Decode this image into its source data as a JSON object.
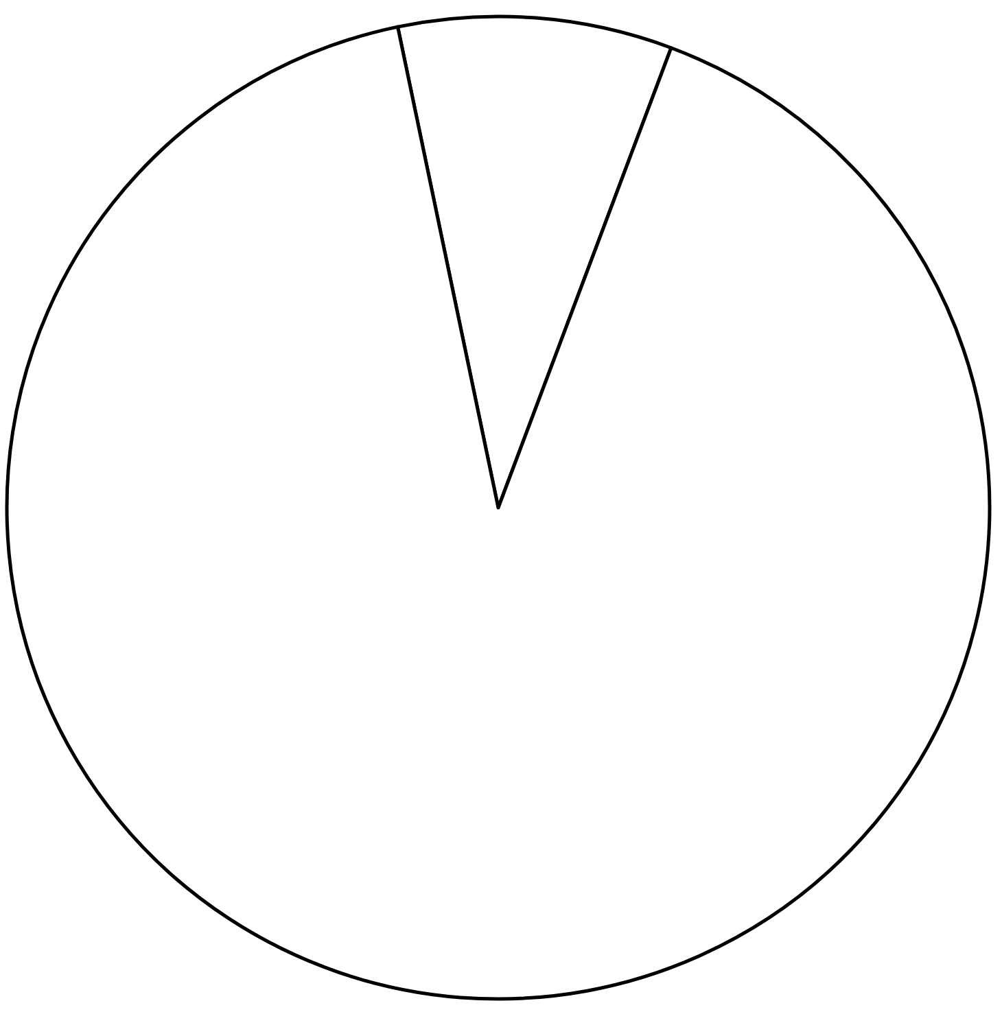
{
  "chart_data": {
    "type": "pie",
    "categories": [
      null,
      null
    ],
    "values": [
      9,
      91
    ],
    "colors": [
      "#ffffff",
      "#ffffff"
    ]
  }
}
